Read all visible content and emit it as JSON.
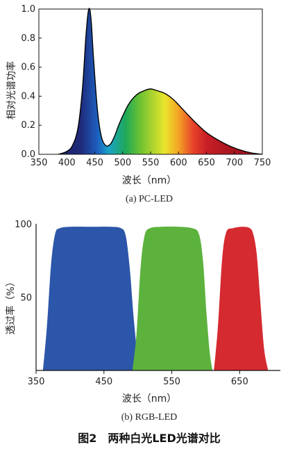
{
  "figure_caption": "图2　两种白光LED光谱对比",
  "chart_data": [
    {
      "type": "area",
      "subtitle": "(a) PC-LED",
      "xlabel": "波长（nm）",
      "ylabel": "相对光谱功率",
      "xlim": [
        350,
        750
      ],
      "ylim": [
        0,
        1.0
      ],
      "x_ticks": [
        "350",
        "400",
        "450",
        "500",
        "550",
        "600",
        "650",
        "700",
        "750"
      ],
      "y_ticks": [
        "0.0",
        "0.2",
        "0.4",
        "0.6",
        "0.8",
        "1.0"
      ],
      "grid": false,
      "fill": "visible-spectrum gradient",
      "outline_color": "#000000",
      "x": [
        385,
        400,
        410,
        420,
        428,
        434,
        438,
        441,
        444,
        448,
        455,
        462,
        470,
        478,
        485,
        495,
        510,
        525,
        540,
        550,
        560,
        575,
        590,
        610,
        630,
        650,
        670,
        690,
        710,
        730,
        750
      ],
      "y": [
        0.0,
        0.02,
        0.06,
        0.18,
        0.45,
        0.8,
        0.97,
        1.0,
        0.9,
        0.65,
        0.3,
        0.12,
        0.06,
        0.07,
        0.12,
        0.22,
        0.34,
        0.41,
        0.44,
        0.45,
        0.44,
        0.42,
        0.38,
        0.3,
        0.22,
        0.15,
        0.1,
        0.06,
        0.03,
        0.01,
        0.0
      ]
    },
    {
      "type": "area",
      "subtitle": "(b) RGB-LED",
      "xlabel": "波长（nm）",
      "ylabel": "透过率（%）",
      "xlim": [
        350,
        710
      ],
      "ylim": [
        0,
        100
      ],
      "x_ticks": [
        "350",
        "450",
        "550",
        "650"
      ],
      "y_ticks": [
        "50",
        "100"
      ],
      "grid": false,
      "series": [
        {
          "color": "#2c56a9",
          "x": [
            360,
            366,
            372,
            378,
            385,
            400,
            430,
            460,
            475,
            482,
            488,
            494,
            500,
            505
          ],
          "y": [
            0,
            30,
            72,
            93,
            97,
            98,
            98,
            98,
            97,
            92,
            70,
            35,
            8,
            0
          ]
        },
        {
          "color": "#5cb23d",
          "x": [
            492,
            498,
            504,
            510,
            518,
            535,
            560,
            580,
            590,
            596,
            601,
            606,
            610
          ],
          "y": [
            0,
            25,
            70,
            92,
            97,
            98,
            98,
            97,
            93,
            75,
            40,
            12,
            0
          ]
        },
        {
          "color": "#d52a30",
          "x": [
            612,
            618,
            624,
            630,
            640,
            655,
            665,
            670,
            675,
            680,
            686,
            692
          ],
          "y": [
            0,
            30,
            75,
            94,
            97,
            98,
            97,
            93,
            80,
            50,
            15,
            0
          ]
        }
      ]
    }
  ]
}
